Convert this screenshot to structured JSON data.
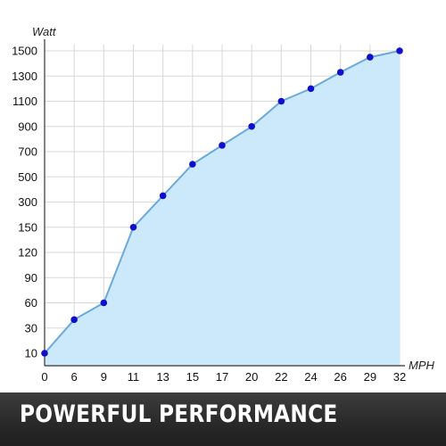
{
  "chart_data": {
    "type": "area",
    "ylabel": "Watt",
    "xlabel": "MPH",
    "categories": [
      "0",
      "6",
      "9",
      "11",
      "13",
      "15",
      "17",
      "20",
      "22",
      "24",
      "26",
      "29",
      "32"
    ],
    "y_ticks": [
      "10",
      "30",
      "60",
      "90",
      "120",
      "150",
      "300",
      "500",
      "700",
      "900",
      "1100",
      "1300",
      "1500"
    ],
    "values": [
      10,
      40,
      60,
      150,
      350,
      600,
      750,
      900,
      1100,
      1200,
      1330,
      1450,
      1500
    ],
    "grid": true,
    "legend": "none",
    "colors": {
      "fill": "#cce9fb",
      "line": "#6aaad8",
      "marker": "#1010cc",
      "grid": "#d8d8d8",
      "axis": "#333333"
    }
  },
  "banner": {
    "text": "POWERFUL PERFORMANCE"
  }
}
